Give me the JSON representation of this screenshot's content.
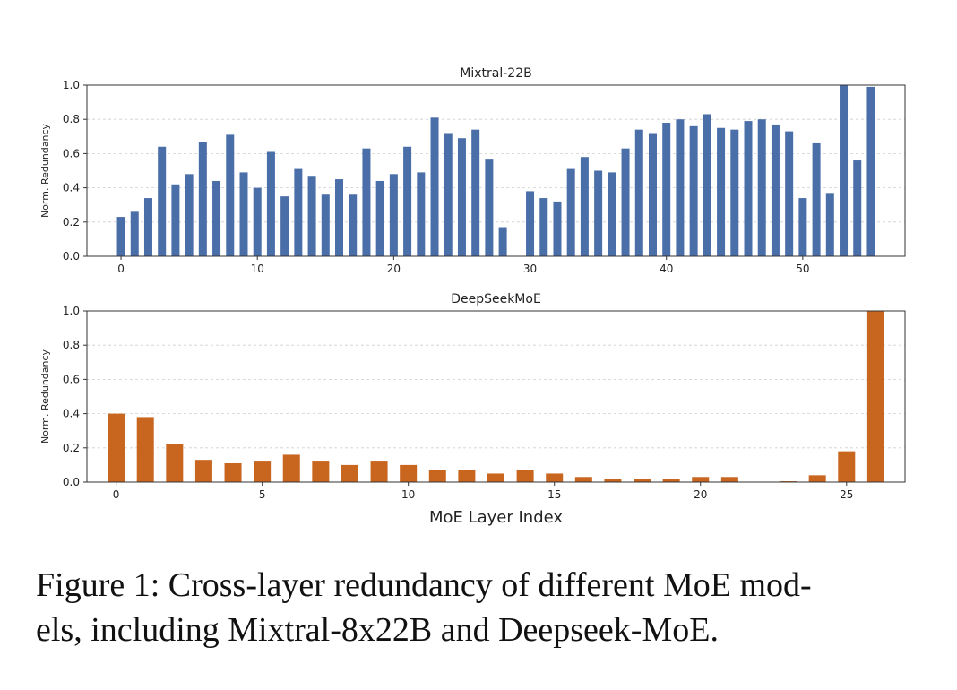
{
  "chart_data": [
    {
      "type": "bar",
      "title": "Mixtral-22B",
      "ylabel": "Norm. Redundancy",
      "xlabel": "",
      "color": "#4a6ea8",
      "xlim": [
        -2.5,
        57.5
      ],
      "ylim": [
        0,
        1.0
      ],
      "yticks": [
        0.0,
        0.2,
        0.4,
        0.6,
        0.8,
        1.0
      ],
      "xticks": [
        0,
        10,
        20,
        30,
        40,
        50
      ],
      "x": [
        0,
        1,
        2,
        3,
        4,
        5,
        6,
        7,
        8,
        9,
        10,
        11,
        12,
        13,
        14,
        15,
        16,
        17,
        18,
        19,
        20,
        21,
        22,
        23,
        24,
        25,
        26,
        27,
        28,
        29,
        30,
        31,
        32,
        33,
        34,
        35,
        36,
        37,
        38,
        39,
        40,
        41,
        42,
        43,
        44,
        45,
        46,
        47,
        48,
        49,
        50,
        51,
        52,
        53,
        54,
        55
      ],
      "values": [
        0.23,
        0.26,
        0.34,
        0.64,
        0.42,
        0.48,
        0.67,
        0.44,
        0.71,
        0.49,
        0.4,
        0.61,
        0.35,
        0.51,
        0.47,
        0.36,
        0.45,
        0.36,
        0.63,
        0.44,
        0.48,
        0.64,
        0.49,
        0.81,
        0.72,
        0.69,
        0.74,
        0.57,
        0.17,
        0.0,
        0.38,
        0.34,
        0.32,
        0.51,
        0.58,
        0.5,
        0.49,
        0.63,
        0.74,
        0.72,
        0.78,
        0.8,
        0.76,
        0.83,
        0.75,
        0.74,
        0.79,
        0.8,
        0.77,
        0.73,
        0.34,
        0.66,
        0.37,
        1.0,
        0.56,
        0.99
      ],
      "grid": true
    },
    {
      "type": "bar",
      "title": "DeepSeekMoE",
      "ylabel": "Norm. Redundancy",
      "xlabel": "MoE Layer Index",
      "color": "#c8651e",
      "xlim": [
        -1.0,
        27.0
      ],
      "ylim": [
        0,
        1.0
      ],
      "yticks": [
        0.0,
        0.2,
        0.4,
        0.6,
        0.8,
        1.0
      ],
      "xticks": [
        0,
        5,
        10,
        15,
        20,
        25
      ],
      "x": [
        0,
        1,
        2,
        3,
        4,
        5,
        6,
        7,
        8,
        9,
        10,
        11,
        12,
        13,
        14,
        15,
        16,
        17,
        18,
        19,
        20,
        21,
        22,
        23,
        24,
        25,
        26
      ],
      "values": [
        0.4,
        0.38,
        0.22,
        0.13,
        0.11,
        0.12,
        0.16,
        0.12,
        0.1,
        0.12,
        0.1,
        0.07,
        0.07,
        0.05,
        0.07,
        0.05,
        0.03,
        0.02,
        0.02,
        0.02,
        0.03,
        0.03,
        0.0,
        0.005,
        0.04,
        0.18,
        1.0
      ],
      "grid": true
    }
  ],
  "caption": {
    "line1": "Figure 1: Cross-layer redundancy of different MoE mod-",
    "line2": "els, including Mixtral-8x22B and Deepseek-MoE."
  }
}
